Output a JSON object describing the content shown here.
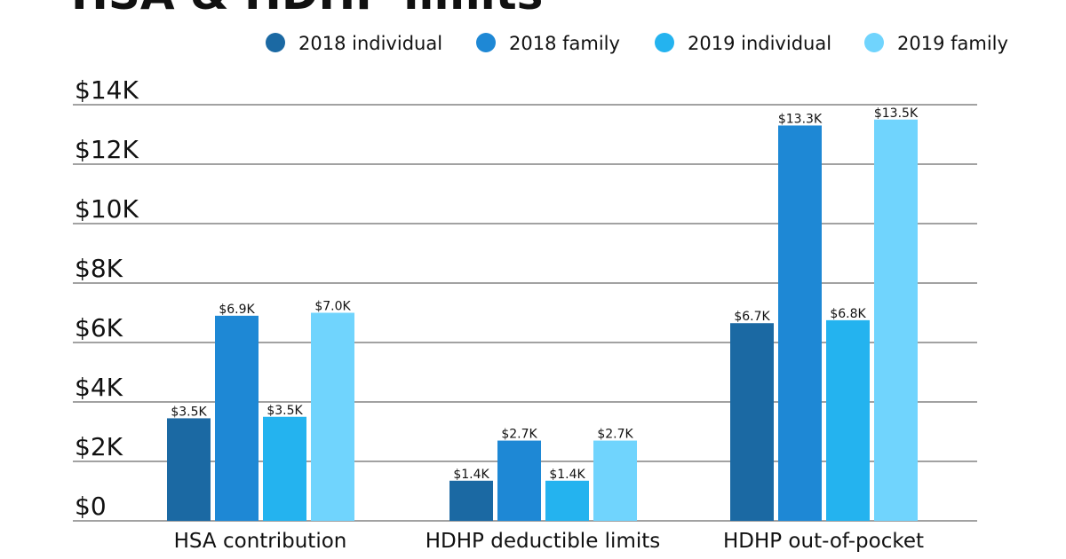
{
  "chart_data": {
    "type": "bar",
    "title": "HSA & HDHP limits",
    "categories": [
      "HSA contribution",
      "HDHP deductible limits",
      "HDHP out-of-pocket"
    ],
    "series": [
      {
        "name": "2018 individual",
        "color": "#1b69a3",
        "values": [
          3450,
          1350,
          6650
        ],
        "value_labels": [
          "$3.5K",
          "$1.4K",
          "$6.7K"
        ]
      },
      {
        "name": "2018 family",
        "color": "#1e88d5",
        "values": [
          6900,
          2700,
          13300
        ],
        "value_labels": [
          "$6.9K",
          "$2.7K",
          "$13.3K"
        ]
      },
      {
        "name": "2019 individual",
        "color": "#24b3ef",
        "values": [
          3500,
          1350,
          6750
        ],
        "value_labels": [
          "$3.5K",
          "$1.4K",
          "$6.8K"
        ]
      },
      {
        "name": "2019 family",
        "color": "#70d4fd",
        "values": [
          7000,
          2700,
          13500
        ],
        "value_labels": [
          "$7.0K",
          "$2.7K",
          "$13.5K"
        ]
      }
    ],
    "ylim": [
      0,
      14000
    ],
    "yticks": [
      {
        "value": 0,
        "label": "$0"
      },
      {
        "value": 2000,
        "label": "$2K"
      },
      {
        "value": 4000,
        "label": "$4K"
      },
      {
        "value": 6000,
        "label": "$6K"
      },
      {
        "value": 8000,
        "label": "$8K"
      },
      {
        "value": 10000,
        "label": "$10K"
      },
      {
        "value": 12000,
        "label": "$12K"
      },
      {
        "value": 14000,
        "label": "$14K"
      }
    ],
    "grid": true
  }
}
